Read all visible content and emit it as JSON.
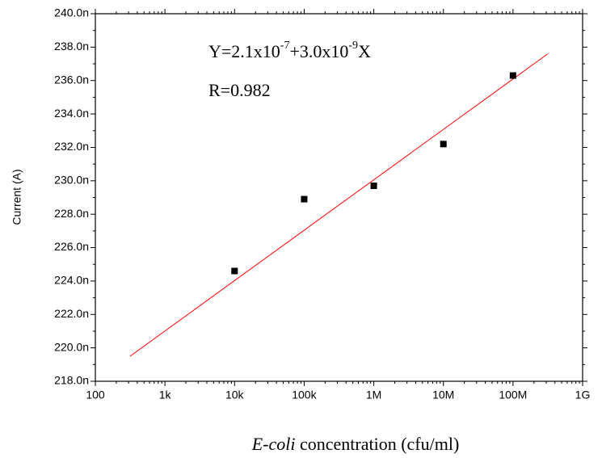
{
  "chart_data": {
    "type": "scatter",
    "y_label": "Current (A)",
    "x_label_parts": [
      "E-coli",
      " concentration (cfu/ml)"
    ],
    "equation_parts": [
      "Y=2.1x10",
      "-7",
      "+3.0x10",
      "-9",
      "X"
    ],
    "r_text": "R=0.982",
    "x_scale": "log",
    "xlim": [
      100,
      1000000000
    ],
    "xticks": [
      100,
      {
        "value": 1000,
        "label": "1k"
      },
      {
        "value": 10000,
        "label": "10k"
      },
      {
        "value": 100000,
        "label": "100k"
      },
      {
        "value": 1000000,
        "label": "1M"
      },
      {
        "value": 10000000,
        "label": "10M"
      },
      {
        "value": 100000000,
        "label": "100M"
      },
      {
        "value": 1000000000,
        "label": "1G"
      }
    ],
    "ylim": [
      218,
      240
    ],
    "yticks": [
      {
        "value": 218,
        "label": "218.0n"
      },
      {
        "value": 220,
        "label": "220.0n"
      },
      {
        "value": 222,
        "label": "222.0n"
      },
      {
        "value": 224,
        "label": "224.0n"
      },
      {
        "value": 226,
        "label": "226.0n"
      },
      {
        "value": 228,
        "label": "228.0n"
      },
      {
        "value": 230,
        "label": "230.0n"
      },
      {
        "value": 232,
        "label": "232.0n"
      },
      {
        "value": 234,
        "label": "234.0n"
      },
      {
        "value": 236,
        "label": "236.0n"
      },
      {
        "value": 238,
        "label": "238.0n"
      },
      {
        "value": 240,
        "label": "240.0n"
      }
    ],
    "points": {
      "color": "#000000",
      "x": [
        10000,
        100000,
        1000000,
        10000000,
        100000000
      ],
      "values": [
        224.6,
        228.9,
        229.7,
        232.2,
        236.3
      ]
    },
    "fit_line": {
      "color": "#ff0000",
      "x": [
        316,
        316000000
      ],
      "values": [
        219.5,
        237.6
      ]
    }
  }
}
